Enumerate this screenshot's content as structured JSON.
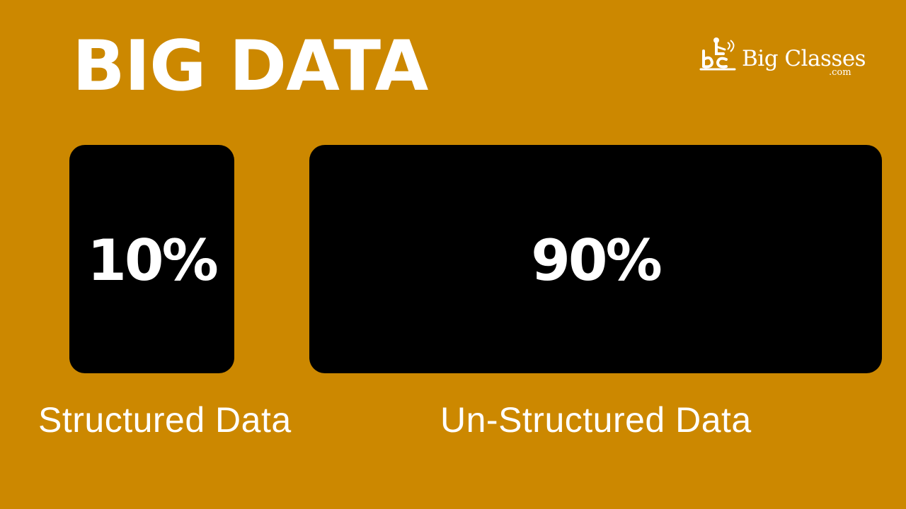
{
  "title": "BIG DATA",
  "logo": {
    "icon": "bc-logo-icon",
    "text": "Big Classes",
    "sub": ".com"
  },
  "segments": [
    {
      "percent": "10%",
      "label": "Structured Data"
    },
    {
      "percent": "90%",
      "label": "Un-Structured Data"
    }
  ],
  "colors": {
    "background": "#CC8800",
    "box": "#000000",
    "text": "#FFFFFF"
  }
}
